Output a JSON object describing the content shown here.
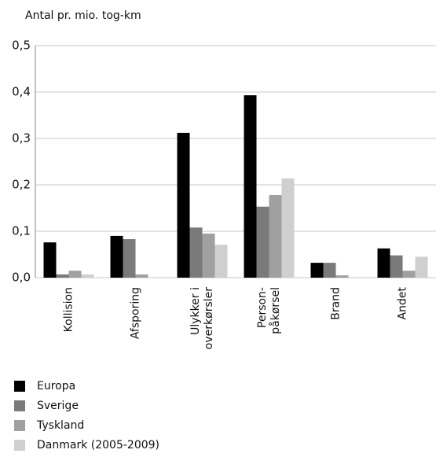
{
  "chart_data": {
    "type": "bar",
    "y_axis_label": "Antal pr. mio. tog-km",
    "categories": [
      [
        "Kollision"
      ],
      [
        "Afsporing"
      ],
      [
        "Ulykker i",
        "overkørsler"
      ],
      [
        "Person-",
        "påkørsel"
      ],
      [
        "Brand"
      ],
      [
        "Andet"
      ]
    ],
    "series": [
      {
        "name": "Europa",
        "color": "#000000",
        "values": [
          0.076,
          0.09,
          0.312,
          0.393,
          0.032,
          0.063
        ]
      },
      {
        "name": "Sverige",
        "color": "#7a7a7a",
        "values": [
          0.007,
          0.083,
          0.108,
          0.153,
          0.032,
          0.048
        ]
      },
      {
        "name": "Tyskland",
        "color": "#a0a0a0",
        "values": [
          0.015,
          0.007,
          0.095,
          0.178,
          0.005,
          0.015
        ]
      },
      {
        "name": "Danmark (2005-2009)",
        "color": "#cfcfcf",
        "values": [
          0.007,
          null,
          0.071,
          0.214,
          null,
          0.045
        ]
      }
    ],
    "ylim": [
      0,
      0.5
    ],
    "yticks": [
      {
        "value": 0,
        "label": "0,0"
      },
      {
        "value": 0.1,
        "label": "0,1"
      },
      {
        "value": 0.2,
        "label": "0,2"
      },
      {
        "value": 0.3,
        "label": "0,3"
      },
      {
        "value": 0.4,
        "label": "0,4"
      },
      {
        "value": 0.5,
        "label": "0,5"
      }
    ],
    "grid": true
  }
}
